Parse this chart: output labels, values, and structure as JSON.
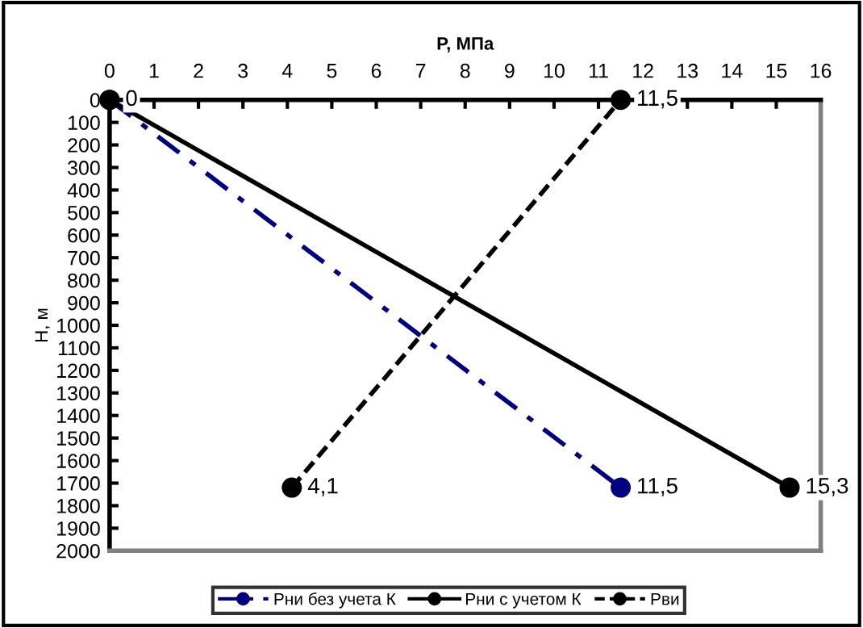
{
  "chart_data": {
    "type": "line",
    "xlabel": "P, МПа",
    "ylabel": "Н, м",
    "xlim": [
      0,
      16
    ],
    "xticks": [
      0,
      1,
      2,
      3,
      4,
      5,
      6,
      7,
      8,
      9,
      10,
      11,
      12,
      13,
      14,
      15,
      16
    ],
    "ylim": [
      2000,
      0
    ],
    "yticks": [
      0,
      100,
      200,
      300,
      400,
      500,
      600,
      700,
      800,
      900,
      1000,
      1100,
      1200,
      1300,
      1400,
      1500,
      1600,
      1700,
      1800,
      1900,
      2000
    ],
    "grid": false,
    "annotations": [
      {
        "text": "11,5",
        "x": 11.5,
        "y": 1720
      },
      {
        "text": "0",
        "x": 0,
        "y": 0
      },
      {
        "text": "15,3",
        "x": 15.3,
        "y": 1720
      },
      {
        "text": "4,1",
        "x": 4.1,
        "y": 1720
      },
      {
        "text": "11,5",
        "x": 11.5,
        "y": 0
      }
    ],
    "legend": "bottom",
    "marker": "circle",
    "series": [
      {
        "name": "Рни без учета К",
        "color": "#000080",
        "line_style": "dashdot",
        "x": [
          0,
          11.5
        ],
        "values": [
          0,
          1720
        ]
      },
      {
        "name": "Рни с учетом К",
        "color": "#000000",
        "line_style": "solid",
        "x": [
          0,
          15.3
        ],
        "values": [
          0,
          1720
        ]
      },
      {
        "name": "Рви",
        "color": "#000000",
        "line_style": "dashed",
        "x": [
          4.1,
          11.5
        ],
        "values": [
          1720,
          0
        ]
      }
    ]
  }
}
